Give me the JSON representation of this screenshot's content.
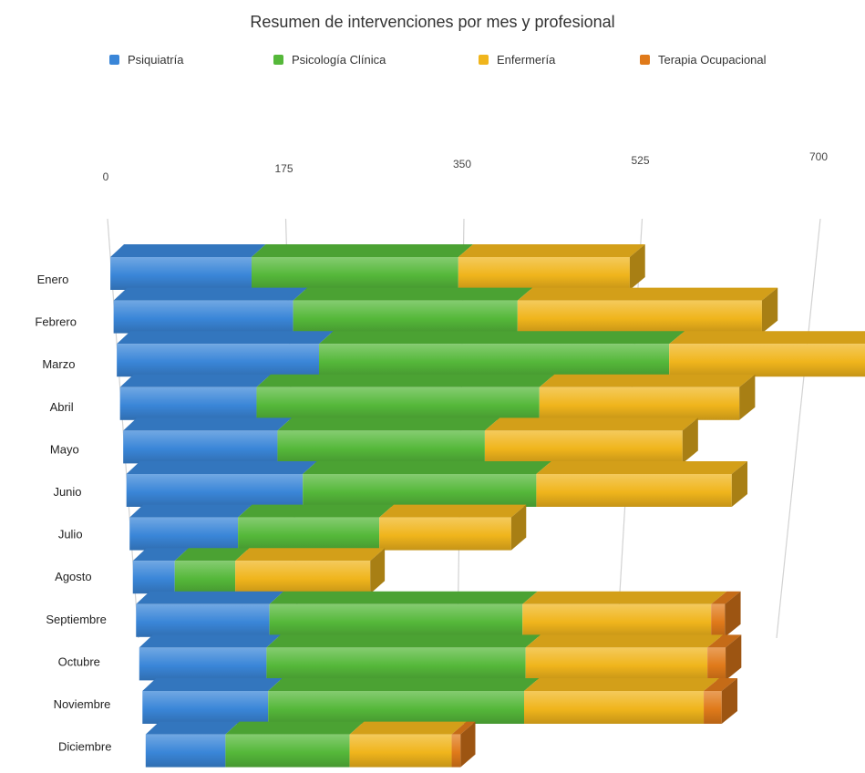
{
  "chart_data": {
    "type": "bar",
    "orientation": "horizontal",
    "stacked": true,
    "three_d": true,
    "title": "Resumen de intervenciones por mes y profesional",
    "legend_position": "top",
    "xlim": [
      0,
      700
    ],
    "xticks": [
      0,
      175,
      350,
      525,
      700
    ],
    "categories": [
      "Enero",
      "Febrero",
      "Marzo",
      "Abril",
      "Mayo",
      "Junio",
      "Julio",
      "Agosto",
      "Septiembre",
      "Octubre",
      "Noviembre",
      "Diciembre"
    ],
    "series": [
      {
        "name": "Psiquiatría",
        "color": "#3a86d8",
        "values": [
          140,
          180,
          205,
          140,
          160,
          185,
          115,
          45,
          145,
          140,
          140,
          90
        ]
      },
      {
        "name": "Psicología Clínica",
        "color": "#55b83a",
        "values": [
          205,
          225,
          355,
          290,
          215,
          245,
          150,
          65,
          275,
          285,
          285,
          140
        ]
      },
      {
        "name": "Enfermería",
        "color": "#f0b51c",
        "values": [
          170,
          245,
          225,
          205,
          205,
          205,
          140,
          145,
          205,
          200,
          200,
          115
        ]
      },
      {
        "name": "Terapia Ocupacional",
        "color": "#e07a1a",
        "values": [
          0,
          0,
          0,
          0,
          0,
          0,
          0,
          0,
          15,
          20,
          20,
          10
        ]
      }
    ]
  }
}
